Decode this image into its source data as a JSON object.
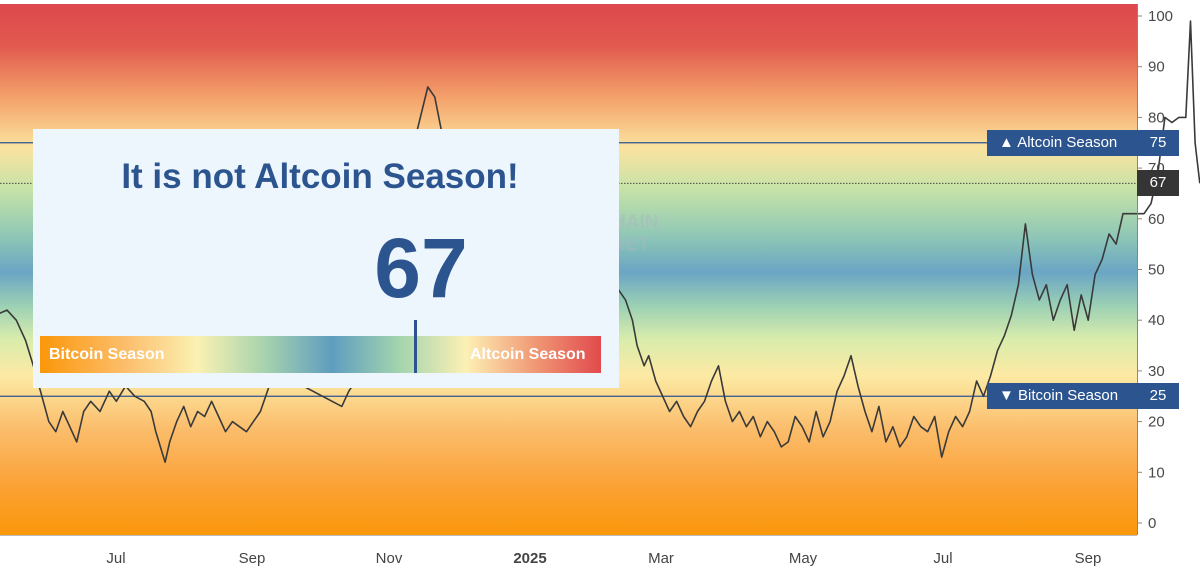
{
  "chart_data": {
    "type": "line",
    "ylim": [
      0,
      100
    ],
    "y_ticks": [
      "0",
      "10",
      "20",
      "30",
      "40",
      "50",
      "60",
      "70",
      "80",
      "90",
      "100"
    ],
    "x_tick_labels": [
      "Jul",
      "Sep",
      "Nov",
      "2025",
      "Mar",
      "May",
      "Jul",
      "Sep"
    ],
    "x_start": "2024-06-01",
    "x_end": "2025-10-03",
    "current_value": 67,
    "thresholds": [
      {
        "label": "Altcoin Season",
        "value": 75,
        "value_label": "75"
      },
      {
        "label": "Bitcoin Season",
        "value": 25,
        "value_label": "25"
      }
    ],
    "series": [
      {
        "color": "#3a3a3a",
        "points": [
          [
            "2024-05-30",
            41
          ],
          [
            "2024-06-04",
            42
          ],
          [
            "2024-06-08",
            40
          ],
          [
            "2024-06-12",
            36
          ],
          [
            "2024-06-16",
            30
          ],
          [
            "2024-06-19",
            25
          ],
          [
            "2024-06-22",
            20
          ],
          [
            "2024-06-25",
            18
          ],
          [
            "2024-06-28",
            22
          ],
          [
            "2024-07-01",
            19
          ],
          [
            "2024-07-04",
            16
          ],
          [
            "2024-07-07",
            22
          ],
          [
            "2024-07-10",
            24
          ],
          [
            "2024-07-14",
            22
          ],
          [
            "2024-07-18",
            26
          ],
          [
            "2024-07-21",
            24
          ],
          [
            "2024-07-25",
            27
          ],
          [
            "2024-07-29",
            25
          ],
          [
            "2024-08-02",
            24
          ],
          [
            "2024-08-05",
            22
          ],
          [
            "2024-08-07",
            18
          ],
          [
            "2024-08-09",
            15
          ],
          [
            "2024-08-11",
            12
          ],
          [
            "2024-08-13",
            16
          ],
          [
            "2024-08-16",
            20
          ],
          [
            "2024-08-19",
            23
          ],
          [
            "2024-08-22",
            19
          ],
          [
            "2024-08-25",
            22
          ],
          [
            "2024-08-28",
            21
          ],
          [
            "2024-08-31",
            24
          ],
          [
            "2024-09-03",
            21
          ],
          [
            "2024-09-06",
            18
          ],
          [
            "2024-09-09",
            20
          ],
          [
            "2024-09-12",
            19
          ],
          [
            "2024-09-15",
            18
          ],
          [
            "2024-09-18",
            20
          ],
          [
            "2024-09-21",
            22
          ],
          [
            "2024-09-24",
            26
          ],
          [
            "2024-09-27",
            30
          ],
          [
            "2024-10-26",
            23
          ],
          [
            "2024-10-29",
            26
          ],
          [
            "2024-11-01",
            28
          ],
          [
            "2024-12-02",
            86
          ],
          [
            "2024-12-05",
            84
          ],
          [
            "2024-12-08",
            77
          ],
          [
            "2025-02-13",
            47
          ],
          [
            "2025-02-16",
            42
          ],
          [
            "2025-02-19",
            48
          ],
          [
            "2025-02-22",
            46
          ],
          [
            "2025-02-25",
            44
          ],
          [
            "2025-02-28",
            40
          ],
          [
            "2025-03-02",
            35
          ],
          [
            "2025-03-05",
            31
          ],
          [
            "2025-03-07",
            33
          ],
          [
            "2025-03-10",
            28
          ],
          [
            "2025-03-13",
            25
          ],
          [
            "2025-03-16",
            22
          ],
          [
            "2025-03-19",
            24
          ],
          [
            "2025-03-22",
            21
          ],
          [
            "2025-03-25",
            19
          ],
          [
            "2025-03-28",
            22
          ],
          [
            "2025-03-31",
            24
          ],
          [
            "2025-04-03",
            28
          ],
          [
            "2025-04-06",
            31
          ],
          [
            "2025-04-09",
            24
          ],
          [
            "2025-04-12",
            20
          ],
          [
            "2025-04-15",
            22
          ],
          [
            "2025-04-18",
            19
          ],
          [
            "2025-04-21",
            21
          ],
          [
            "2025-04-24",
            17
          ],
          [
            "2025-04-27",
            20
          ],
          [
            "2025-04-30",
            18
          ],
          [
            "2025-05-03",
            15
          ],
          [
            "2025-05-06",
            16
          ],
          [
            "2025-05-09",
            21
          ],
          [
            "2025-05-12",
            19
          ],
          [
            "2025-05-15",
            16
          ],
          [
            "2025-05-18",
            22
          ],
          [
            "2025-05-21",
            17
          ],
          [
            "2025-05-24",
            20
          ],
          [
            "2025-05-27",
            26
          ],
          [
            "2025-05-30",
            29
          ],
          [
            "2025-06-02",
            33
          ],
          [
            "2025-06-05",
            27
          ],
          [
            "2025-06-08",
            22
          ],
          [
            "2025-06-11",
            18
          ],
          [
            "2025-06-14",
            23
          ],
          [
            "2025-06-17",
            16
          ],
          [
            "2025-06-20",
            19
          ],
          [
            "2025-06-23",
            15
          ],
          [
            "2025-06-26",
            17
          ],
          [
            "2025-06-29",
            21
          ],
          [
            "2025-07-02",
            19
          ],
          [
            "2025-07-05",
            18
          ],
          [
            "2025-07-08",
            21
          ],
          [
            "2025-07-11",
            13
          ],
          [
            "2025-07-14",
            18
          ],
          [
            "2025-07-17",
            21
          ],
          [
            "2025-07-20",
            19
          ],
          [
            "2025-07-23",
            22
          ],
          [
            "2025-07-26",
            28
          ],
          [
            "2025-07-29",
            25
          ],
          [
            "2025-08-01",
            29
          ],
          [
            "2025-08-04",
            34
          ],
          [
            "2025-08-07",
            37
          ],
          [
            "2025-08-10",
            41
          ],
          [
            "2025-08-13",
            47
          ],
          [
            "2025-08-16",
            59
          ],
          [
            "2025-08-19",
            49
          ],
          [
            "2025-08-22",
            44
          ],
          [
            "2025-08-25",
            47
          ],
          [
            "2025-08-28",
            40
          ],
          [
            "2025-08-31",
            44
          ],
          [
            "2025-09-03",
            47
          ],
          [
            "2025-09-06",
            38
          ],
          [
            "2025-09-09",
            45
          ],
          [
            "2025-09-12",
            40
          ],
          [
            "2025-09-15",
            49
          ],
          [
            "2025-09-18",
            52
          ],
          [
            "2025-09-21",
            57
          ],
          [
            "2025-09-24",
            55
          ],
          [
            "2025-09-27",
            61
          ],
          [
            "2025-09-30",
            61
          ],
          [
            "2025-10-03",
            61
          ],
          [
            "2025-10-06",
            61
          ],
          [
            "2025-10-09",
            63
          ],
          [
            "2025-10-12",
            69
          ],
          [
            "2025-10-15",
            80
          ],
          [
            "2025-10-18",
            79
          ],
          [
            "2025-10-21",
            80
          ],
          [
            "2025-10-24",
            80
          ],
          [
            "2025-10-26",
            99
          ],
          [
            "2025-10-28",
            75
          ],
          [
            "2025-10-30",
            67
          ]
        ]
      }
    ]
  },
  "overlay": {
    "title": "It is not Altcoin Season!",
    "value": "67",
    "gauge_left_label": "Bitcoin Season",
    "gauge_right_label": "Altcoin Season",
    "gauge_value": 67
  },
  "watermark": {
    "line1": "HAIN",
    "line2": "NET"
  },
  "colors": {
    "accent": "#2c5590",
    "band_top": "#df4a4f",
    "band_mid": "#6aa7c6",
    "band_bottom": "#fb9b0c",
    "line": "#3a3a3a",
    "current_tag": "#353535"
  }
}
